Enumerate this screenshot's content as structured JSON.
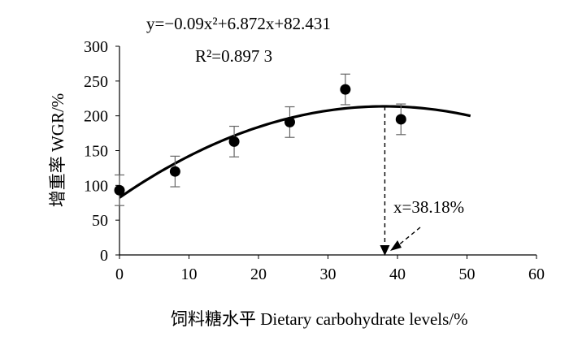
{
  "chart_data": {
    "type": "scatter",
    "xlabel": "饲料糖水平  Dietary carbohydrate levels/%",
    "ylabel": "增重率  WGR/%",
    "xlim": [
      0,
      60
    ],
    "ylim": [
      0,
      300
    ],
    "x_ticks": [
      "0",
      "10",
      "20",
      "30",
      "40",
      "50",
      "60"
    ],
    "y_ticks": [
      "0",
      "50",
      "100",
      "150",
      "200",
      "250",
      "300"
    ],
    "points": [
      {
        "x": 0,
        "y": 93,
        "err": 22
      },
      {
        "x": 8,
        "y": 120,
        "err": 22
      },
      {
        "x": 16.5,
        "y": 163,
        "err": 22
      },
      {
        "x": 24.5,
        "y": 191,
        "err": 22
      },
      {
        "x": 32.5,
        "y": 238,
        "err": 22
      },
      {
        "x": 40.5,
        "y": 195,
        "err": 22
      }
    ],
    "fit": {
      "a": -0.09,
      "b": 6.872,
      "c": 82.431,
      "x_range": [
        0,
        50.5
      ]
    },
    "equation": "y=−0.09x²+6.872x+82.431",
    "r_squared": "R²=0.897 3",
    "optimum_label": "x=38.18%",
    "optimum_x": 38.18,
    "grid": false,
    "legend": "none"
  }
}
